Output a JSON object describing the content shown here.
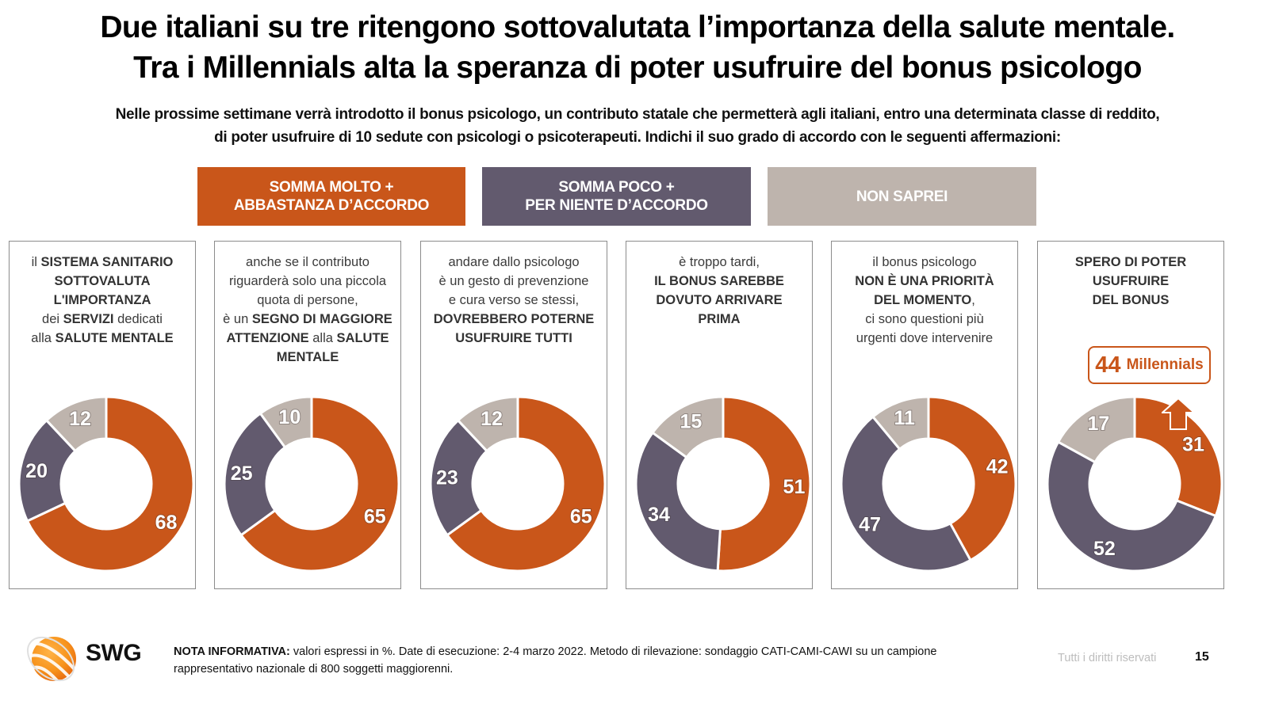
{
  "header": {
    "title_line1": "Due italiani su tre ritengono sottovalutata l’importanza della salute mentale.",
    "title_line2": "Tra i Millennials alta la speranza di poter usufruire del bonus psicologo",
    "subtitle_line1": "Nelle prossime settimane verrà introdotto il bonus psicologo, un contributo statale che permetterà agli italiani, entro una determinata classe di reddito,",
    "subtitle_line2": "di poter usufruire di 10 sedute con psicologi o psicoterapeuti. Indichi il suo grado di accordo con le seguenti affermazioni:"
  },
  "colors": {
    "agree": "#c9561a",
    "disagree": "#625a6e",
    "dont_know": "#beb4ad"
  },
  "legend": [
    {
      "line1": "SOMMA MOLTO +",
      "line2": "ABBASTANZA D’ACCORDO"
    },
    {
      "line1": "SOMMA POCO +",
      "line2": "PER NIENTE D’ACCORDO"
    },
    {
      "line1": "NON SAPREI",
      "line2": ""
    }
  ],
  "cards": [
    {
      "lines": [
        [
          {
            "t": "il ",
            "b": false
          },
          {
            "t": "SISTEMA SANITARIO",
            "b": true
          }
        ],
        [
          {
            "t": "SOTTOVALUTA",
            "b": true
          }
        ],
        [
          {
            "t": "L'IMPORTANZA",
            "b": true
          }
        ],
        [
          {
            "t": "dei ",
            "b": false
          },
          {
            "t": "SERVIZI",
            "b": true
          },
          {
            "t": " dedicati",
            "b": false
          }
        ],
        [
          {
            "t": "alla ",
            "b": false
          },
          {
            "t": "SALUTE MENTALE",
            "b": true
          }
        ]
      ]
    },
    {
      "lines": [
        [
          {
            "t": "anche se il contributo",
            "b": false
          }
        ],
        [
          {
            "t": "riguarderà solo una piccola",
            "b": false
          }
        ],
        [
          {
            "t": "quota di persone,",
            "b": false
          }
        ],
        [
          {
            "t": "è un ",
            "b": false
          },
          {
            "t": "SEGNO DI MAGGIORE",
            "b": true
          }
        ],
        [
          {
            "t": "ATTENZIONE",
            "b": true
          },
          {
            "t": " alla ",
            "b": false
          },
          {
            "t": "SALUTE",
            "b": true
          }
        ],
        [
          {
            "t": "MENTALE",
            "b": true
          }
        ]
      ]
    },
    {
      "lines": [
        [
          {
            "t": "andare dallo psicologo",
            "b": false
          }
        ],
        [
          {
            "t": "è un gesto di prevenzione",
            "b": false
          }
        ],
        [
          {
            "t": "e cura verso se stessi,",
            "b": false
          }
        ],
        [
          {
            "t": "DOVREBBERO POTERNE",
            "b": true
          }
        ],
        [
          {
            "t": "USUFRUIRE TUTTI",
            "b": true
          }
        ]
      ]
    },
    {
      "lines": [
        [
          {
            "t": "è troppo tardi,",
            "b": false
          }
        ],
        [
          {
            "t": "IL BONUS SAREBBE",
            "b": true
          }
        ],
        [
          {
            "t": "DOVUTO ARRIVARE",
            "b": true
          }
        ],
        [
          {
            "t": "PRIMA",
            "b": true
          }
        ]
      ]
    },
    {
      "lines": [
        [
          {
            "t": "il bonus psicologo",
            "b": false
          }
        ],
        [
          {
            "t": "NON È UNA PRIORITÀ",
            "b": true
          }
        ],
        [
          {
            "t": "DEL MOMENTO",
            "b": true
          },
          {
            "t": ",",
            "b": false
          }
        ],
        [
          {
            "t": "ci sono questioni più",
            "b": false
          }
        ],
        [
          {
            "t": "urgenti dove intervenire",
            "b": false
          }
        ]
      ]
    },
    {
      "lines": [
        [
          {
            "t": "SPERO DI POTER",
            "b": true
          }
        ],
        [
          {
            "t": "USUFRUIRE",
            "b": true
          }
        ],
        [
          {
            "t": "DEL BONUS",
            "b": true
          }
        ]
      ]
    }
  ],
  "callout": {
    "value": "44",
    "label": "Millennials"
  },
  "chart_data": {
    "type": "pie",
    "variant": "donut",
    "unit": "%",
    "series_names": [
      "SOMMA MOLTO + ABBASTANZA D’ACCORDO",
      "SOMMA POCO + PER NIENTE D’ACCORDO",
      "NON SAPREI"
    ],
    "charts": [
      {
        "agree": 68,
        "disagree": 20,
        "dont_know": 12
      },
      {
        "agree": 65,
        "disagree": 25,
        "dont_know": 10
      },
      {
        "agree": 65,
        "disagree": 23,
        "dont_know": 12
      },
      {
        "agree": 51,
        "disagree": 34,
        "dont_know": 15
      },
      {
        "agree": 42,
        "disagree": 47,
        "dont_know": 11
      },
      {
        "agree": 31,
        "disagree": 52,
        "dont_know": 17
      }
    ]
  },
  "footer": {
    "logo_text": "SWG",
    "note_label": "NOTA INFORMATIVA:",
    "note_line1": " valori espressi in %. Date di esecuzione: 2-4 marzo 2022. Metodo di rilevazione: sondaggio CATI-CAMI-CAWI su un campione",
    "note_line2": "rappresentativo nazionale di 800 soggetti maggiorenni.",
    "rights": "Tutti i diritti riservati",
    "page_number": "15"
  }
}
